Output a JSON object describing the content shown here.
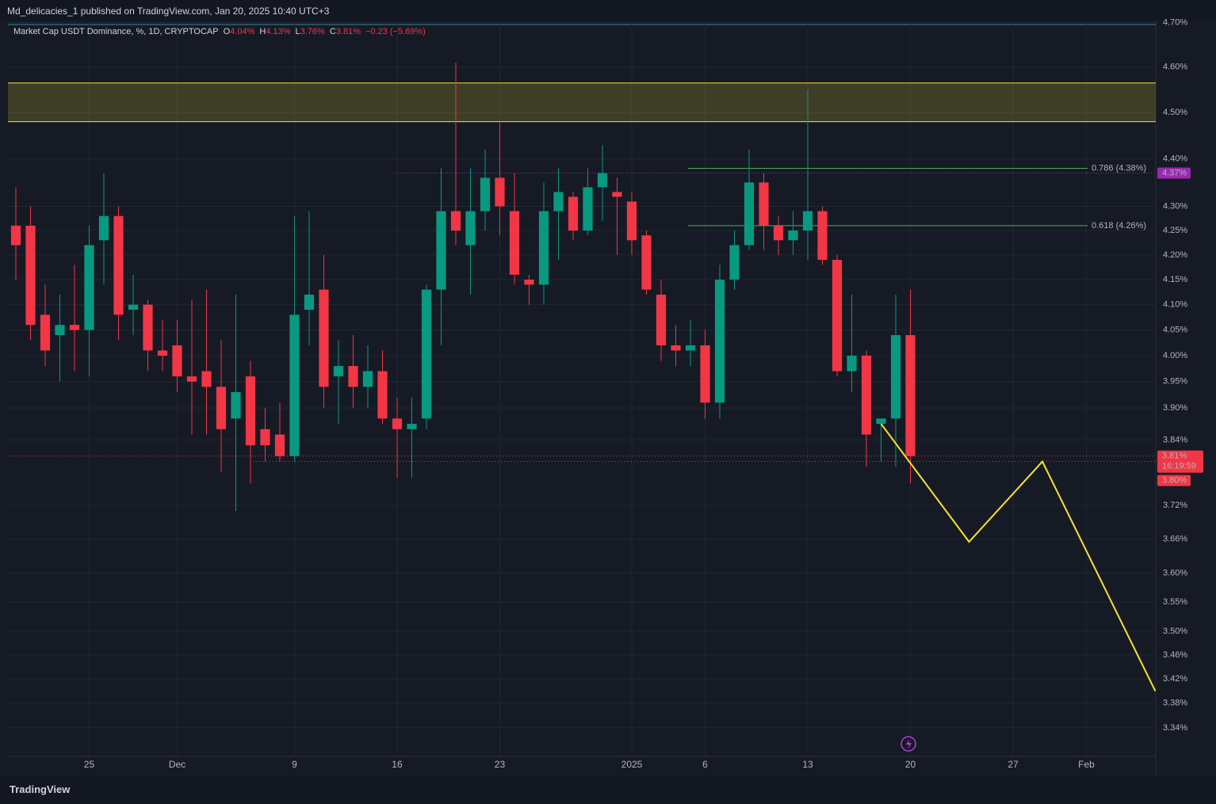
{
  "published": "Md_delicacies_1 published on TradingView.com, Jan 20, 2025 10:40 UTC+3",
  "footer": "TradingView",
  "chart_data": {
    "type": "candlestick",
    "title": "Market Cap USDT Dominance, %, 1D, CRYPTOCAP",
    "legend_values": [
      {
        "label": "O",
        "value": "4.04%"
      },
      {
        "label": "H",
        "value": "4.13%"
      },
      {
        "label": "L",
        "value": "3.76%"
      },
      {
        "label": "C",
        "value": "3.81%"
      }
    ],
    "change": "−0.23 (−5.69%)",
    "log_scale": true,
    "grid": true,
    "up_color": "#089981",
    "down_color": "#f23645",
    "open": [
      4.26,
      4.26,
      4.08,
      4.04,
      4.06,
      4.05,
      4.23,
      4.28,
      4.09,
      4.1,
      4.01,
      4.02,
      3.96,
      3.97,
      3.94,
      3.88,
      3.96,
      3.86,
      3.85,
      3.81,
      4.09,
      4.13,
      3.96,
      3.98,
      3.94,
      3.97,
      3.88,
      3.86,
      3.88,
      4.13,
      4.29,
      4.22,
      4.29,
      4.36,
      4.29,
      4.15,
      4.14,
      4.29,
      4.32,
      4.25,
      4.34,
      4.33,
      4.31,
      4.24,
      4.12,
      4.02,
      4.01,
      4.02,
      3.91,
      4.15,
      4.22,
      4.35,
      4.26,
      4.23,
      4.25,
      4.29,
      4.19,
      3.97,
      4.0,
      3.87,
      3.88,
      4.04
    ],
    "high": [
      4.34,
      4.3,
      4.14,
      4.12,
      4.18,
      4.26,
      4.37,
      4.3,
      4.16,
      4.11,
      4.07,
      4.07,
      4.11,
      4.13,
      4.03,
      4.12,
      3.99,
      3.9,
      3.91,
      4.28,
      4.29,
      4.2,
      4.03,
      4.04,
      4.02,
      4.01,
      3.92,
      3.92,
      4.14,
      4.38,
      4.61,
      4.38,
      4.42,
      4.48,
      4.37,
      4.16,
      4.35,
      4.38,
      4.33,
      4.38,
      4.43,
      4.36,
      4.33,
      4.25,
      4.15,
      4.06,
      4.07,
      4.05,
      4.18,
      4.25,
      4.42,
      4.37,
      4.28,
      4.29,
      4.55,
      4.3,
      4.2,
      4.12,
      4.01,
      3.88,
      4.12,
      4.13
    ],
    "low": [
      4.15,
      4.03,
      3.98,
      3.95,
      3.97,
      3.96,
      4.14,
      4.03,
      4.04,
      3.97,
      3.97,
      3.93,
      3.85,
      3.85,
      3.78,
      3.71,
      3.76,
      3.8,
      3.8,
      3.8,
      4.02,
      3.9,
      3.87,
      3.9,
      3.9,
      3.87,
      3.77,
      3.77,
      3.86,
      4.02,
      4.22,
      4.12,
      4.25,
      4.24,
      4.14,
      4.1,
      4.1,
      4.19,
      4.23,
      4.24,
      4.27,
      4.2,
      4.2,
      4.12,
      3.99,
      3.98,
      3.98,
      3.88,
      3.88,
      4.13,
      4.21,
      4.21,
      4.2,
      4.2,
      4.19,
      4.18,
      3.96,
      3.93,
      3.79,
      3.8,
      3.79,
      3.76
    ],
    "close": [
      4.22,
      4.06,
      4.01,
      4.06,
      4.05,
      4.22,
      4.28,
      4.08,
      4.1,
      4.01,
      4.0,
      3.96,
      3.95,
      3.94,
      3.86,
      3.93,
      3.83,
      3.83,
      3.81,
      4.08,
      4.12,
      3.94,
      3.98,
      3.94,
      3.97,
      3.88,
      3.86,
      3.87,
      4.13,
      4.29,
      4.25,
      4.29,
      4.36,
      4.3,
      4.16,
      4.14,
      4.29,
      4.33,
      4.25,
      4.34,
      4.37,
      4.32,
      4.23,
      4.13,
      4.02,
      4.01,
      4.02,
      3.91,
      4.15,
      4.22,
      4.35,
      4.26,
      4.23,
      4.25,
      4.29,
      4.19,
      3.97,
      4.0,
      3.85,
      3.88,
      4.04,
      3.81
    ],
    "xlim": [
      -0.54,
      77.73
    ],
    "xticks": [
      {
        "value": 5,
        "label": "25"
      },
      {
        "value": 11,
        "label": "Dec"
      },
      {
        "value": 19,
        "label": "9"
      },
      {
        "value": 26,
        "label": "16"
      },
      {
        "value": 33,
        "label": "23"
      },
      {
        "value": 42,
        "label": "2025"
      },
      {
        "value": 47,
        "label": "6"
      },
      {
        "value": 54,
        "label": "13"
      },
      {
        "value": 61,
        "label": "20"
      },
      {
        "value": 68,
        "label": "27"
      },
      {
        "value": 73,
        "label": "Feb"
      }
    ],
    "ylim": [
      3.294,
      4.705
    ],
    "yticks": [
      {
        "value": 4.7,
        "label": "4.70%"
      },
      {
        "value": 4.6,
        "label": "4.60%"
      },
      {
        "value": 4.5,
        "label": "4.50%"
      },
      {
        "value": 4.4,
        "label": "4.40%"
      },
      {
        "value": 4.3,
        "label": "4.30%"
      },
      {
        "value": 4.25,
        "label": "4.25%"
      },
      {
        "value": 4.2,
        "label": "4.20%"
      },
      {
        "value": 4.15,
        "label": "4.15%"
      },
      {
        "value": 4.1,
        "label": "4.10%"
      },
      {
        "value": 4.05,
        "label": "4.05%"
      },
      {
        "value": 4.0,
        "label": "4.00%"
      },
      {
        "value": 3.95,
        "label": "3.95%"
      },
      {
        "value": 3.9,
        "label": "3.90%"
      },
      {
        "value": 3.84,
        "label": "3.84%"
      },
      {
        "value": 3.72,
        "label": "3.72%"
      },
      {
        "value": 3.66,
        "label": "3.66%"
      },
      {
        "value": 3.6,
        "label": "3.60%"
      },
      {
        "value": 3.55,
        "label": "3.55%"
      },
      {
        "value": 3.5,
        "label": "3.50%"
      },
      {
        "value": 3.46,
        "label": "3.46%"
      },
      {
        "value": 3.42,
        "label": "3.42%"
      },
      {
        "value": 3.38,
        "label": "3.38%"
      },
      {
        "value": 3.34,
        "label": "3.34%"
      }
    ],
    "zone": {
      "low": 4.48,
      "high": 4.565,
      "color": "#f5e232"
    },
    "fib_levels": [
      {
        "value": 4.38,
        "label": "0.786 (4.38%)"
      },
      {
        "value": 4.26,
        "label": "0.618 (4.26%)"
      }
    ],
    "fib_color": "#4caf50",
    "marker_price": {
      "value": 4.37,
      "label": "4.37%",
      "color": "#9c27b0"
    },
    "last_price": {
      "value": 3.81,
      "label": "3.81%",
      "countdown": "16:19:59"
    },
    "low_price": {
      "value": 3.8,
      "label": "3.80%"
    },
    "projection": {
      "x": [
        59,
        65,
        70,
        77.7
      ],
      "values": [
        3.87,
        3.655,
        3.8,
        3.4
      ],
      "color": "#f5e232"
    }
  }
}
